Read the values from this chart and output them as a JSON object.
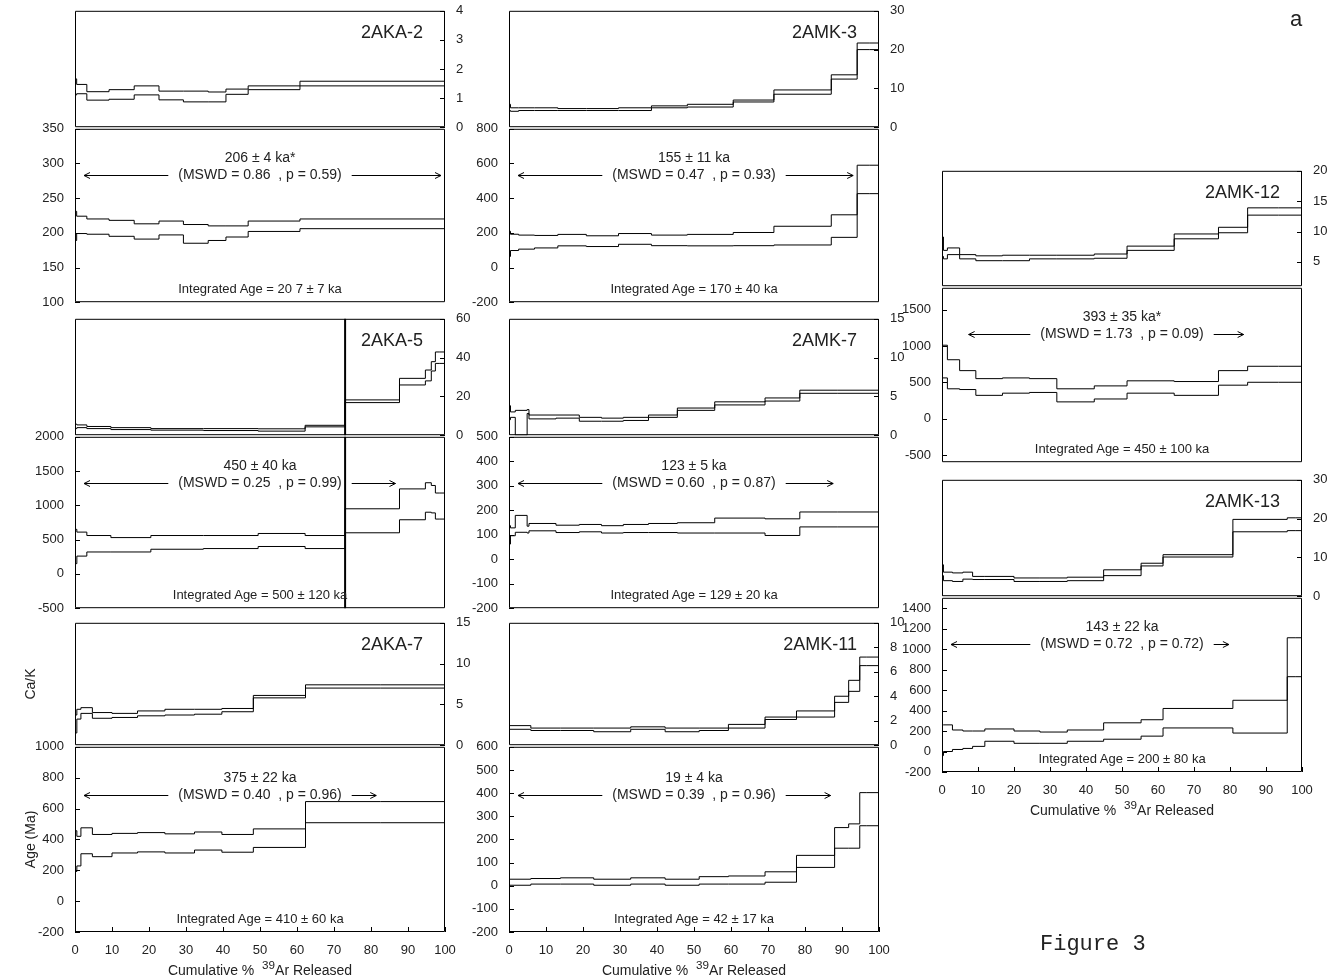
{
  "chart_data": [
    {
      "type": "step",
      "title": "2AKA-2",
      "x": [
        0,
        0.45,
        3.2,
        9.2,
        16,
        22.7,
        29.3,
        36,
        40.8,
        46.8,
        60.8,
        80,
        100
      ],
      "xlim": [
        0,
        100
      ],
      "ylim": [
        0,
        4
      ],
      "yticks": [
        0,
        1,
        2,
        3,
        4
      ],
      "tick_labels": "y",
      "series": [
        {
          "color": "#000000",
          "values": [
            2.65,
            1.66,
            1.47,
            1.22,
            1.29,
            1.42,
            1.24,
            1.24,
            1.21,
            1.31,
            1.42,
            1.58,
            1.58
          ]
        },
        {
          "color": "#000000",
          "values": [
            0.17,
            1.11,
            1.15,
            0.93,
            0.96,
            1.11,
            0.94,
            0.87,
            0.87,
            1.13,
            1.29,
            1.42,
            1.42
          ]
        }
      ]
    },
    {
      "type": "step",
      "x": [
        0,
        0.45,
        3.2,
        9.2,
        16,
        22.7,
        29.3,
        36,
        40.8,
        46.8,
        60.8,
        80,
        100
      ],
      "xlim": [
        0,
        100
      ],
      "ylim": [
        100,
        350
      ],
      "yticks": [
        100,
        150,
        200,
        250,
        300,
        350
      ],
      "tick_labels": "y",
      "series": [
        {
          "color": "#000000",
          "values": [
            324,
            231,
            224,
            220,
            218,
            213,
            217,
            212,
            210,
            210,
            217,
            220,
            220
          ]
        },
        {
          "color": "#000000",
          "values": [
            170,
            189,
            199,
            198,
            195,
            191,
            197,
            185,
            189,
            194,
            202,
            206,
            206
          ]
        }
      ],
      "annotations": [
        "206 ± 4 ka*",
        "(MSWD = 0.86  , p = 0.59)",
        "Integrated Age = 20 7 ± 7 ka"
      ]
    },
    {
      "type": "step",
      "title": "2AKA-5",
      "x": [
        0,
        0.5,
        3.2,
        9.7,
        20.5,
        34.7,
        49.5,
        62.2,
        73,
        87.7,
        94.7,
        96.3,
        97.4,
        98.6,
        100
      ],
      "xlim": [
        0,
        100
      ],
      "ylim": [
        0,
        60
      ],
      "yticks": [
        0,
        20,
        40,
        60
      ],
      "tick_labels": "y",
      "series": [
        {
          "color": "#000000",
          "values": [
            6.2,
            5.7,
            5.3,
            4.5,
            3.9,
            3.4,
            3.4,
            3.3,
            5.1,
            18.2,
            29.3,
            33.6,
            37.9,
            42.9,
            42.9
          ]
        },
        {
          "color": "#000000",
          "values": [
            0,
            3.4,
            3.9,
            3.4,
            2.9,
            2.6,
            2.4,
            2.1,
            4.3,
            16.8,
            25.9,
            28,
            33.1,
            37,
            37
          ]
        }
      ],
      "ref_lines": [
        {
          "axis": "x",
          "value": 73
        }
      ]
    },
    {
      "type": "step",
      "x": [
        0,
        0.5,
        3.2,
        9.7,
        20.5,
        34.7,
        49.5,
        62.2,
        73,
        87.7,
        94.7,
        96.3,
        97.4,
        98.6,
        100
      ],
      "xlim": [
        0,
        100
      ],
      "ylim": [
        -500,
        2000
      ],
      "yticks": [
        -500,
        0,
        500,
        1000,
        1500,
        2000
      ],
      "tick_labels": "y",
      "series": [
        {
          "color": "#000000",
          "values": [
            700,
            650,
            610,
            560,
            530,
            560,
            560,
            590,
            560,
            950,
            1240,
            1330,
            1290,
            1180,
            1180
          ]
        },
        {
          "color": "#000000",
          "values": [
            -200,
            150,
            260,
            320,
            320,
            360,
            370,
            400,
            370,
            600,
            790,
            900,
            890,
            800,
            800
          ]
        }
      ],
      "ref_lines": [
        {
          "axis": "x",
          "value": 73
        }
      ],
      "annotations": [
        "450 ± 40 ka",
        "(MSWD = 0.25  , p = 0.99)",
        "Integrated Age = 500 ± 120 ka"
      ]
    },
    {
      "type": "step",
      "title": "2AKA-7",
      "ylabel": "Ca/K",
      "x": [
        0,
        0.5,
        1.6,
        4.7,
        10,
        16.9,
        24.3,
        32.3,
        39.7,
        48.2,
        62.3,
        82.5,
        100
      ],
      "xlim": [
        0,
        100
      ],
      "ylim": [
        0,
        15
      ],
      "yticks": [
        0,
        5,
        10,
        15
      ],
      "tick_labels": "y",
      "series": [
        {
          "color": "#000000",
          "values": [
            4.6,
            3.7,
            4.4,
            4.6,
            4.0,
            3.9,
            4.2,
            4.4,
            4.4,
            4.5,
            6.1,
            7.4,
            7.4
          ]
        },
        {
          "color": "#000000",
          "values": [
            0.2,
            1.5,
            3.2,
            3.9,
            3.3,
            3.4,
            3.6,
            3.7,
            3.8,
            4.1,
            5.8,
            7.0,
            7.0
          ]
        }
      ]
    },
    {
      "type": "step",
      "ylabel": "Age (Ma)",
      "xlabel": "Cumulative %  $^{39}$Ar Released",
      "x": [
        0,
        0.5,
        1.6,
        4.7,
        10,
        16.9,
        24.3,
        32.3,
        39.7,
        48.2,
        62.3,
        82.5,
        100
      ],
      "xlim": [
        0,
        100
      ],
      "xticks": [
        0,
        10,
        20,
        30,
        40,
        50,
        60,
        70,
        80,
        90,
        100
      ],
      "ylim": [
        -200,
        1000
      ],
      "yticks": [
        -200,
        0,
        200,
        400,
        600,
        800,
        1000
      ],
      "series": [
        {
          "color": "#000000",
          "values": [
            560,
            456,
            420,
            475,
            432,
            439,
            444,
            436,
            448,
            432,
            468,
            645,
            645
          ]
        },
        {
          "color": "#000000",
          "values": [
            0,
            192,
            228,
            307,
            288,
            312,
            319,
            312,
            331,
            317,
            348,
            508,
            508
          ]
        }
      ],
      "annotations": [
        "375 ± 22 ka",
        "(MSWD = 0.40  , p = 0.96)",
        "Integrated Age = 410 ± 60 ka"
      ]
    },
    {
      "type": "step",
      "title": "2AMK-3",
      "x": [
        0,
        0.4,
        2.6,
        6.9,
        13.2,
        20.9,
        29.6,
        38.5,
        48.2,
        60.6,
        71.6,
        87.1,
        94.1,
        97.5,
        100
      ],
      "xlim": [
        0,
        100
      ],
      "ylim": [
        0,
        30
      ],
      "yticks": [
        0,
        10,
        20,
        30
      ],
      "tick_labels": "y",
      "series": [
        {
          "color": "#000000",
          "values": [
            6.1,
            5.9,
            5.0,
            5.0,
            5.0,
            4.8,
            4.8,
            5.0,
            5.5,
            5.9,
            7.0,
            9.6,
            13.5,
            21.7,
            21.7
          ]
        },
        {
          "color": "#000000",
          "values": [
            0,
            4.3,
            4.1,
            4.3,
            4.3,
            4.3,
            4.3,
            4.3,
            5.0,
            5.2,
            6.5,
            8.5,
            12.4,
            20,
            20
          ]
        }
      ]
    },
    {
      "type": "step",
      "x": [
        0,
        0.4,
        2.6,
        6.9,
        13.2,
        20.9,
        29.6,
        38.5,
        48.2,
        60.6,
        71.6,
        87.1,
        94.1,
        97.5,
        100
      ],
      "xlim": [
        0,
        100
      ],
      "ylim": [
        -200,
        800
      ],
      "yticks": [
        -200,
        0,
        200,
        400,
        600,
        800
      ],
      "tick_labels": "y",
      "series": [
        {
          "color": "#000000",
          "values": [
            262,
            209,
            192,
            187,
            185,
            191,
            183,
            196,
            187,
            191,
            202,
            238,
            304,
            590,
            590
          ]
        },
        {
          "color": "#000000",
          "values": [
            -115,
            64,
            98,
            106,
            113,
            125,
            121,
            134,
            126,
            125,
            126,
            130,
            174,
            426,
            426
          ]
        }
      ],
      "annotations": [
        "155 ± 11 ka",
        "(MSWD = 0.47  , p = 0.93)",
        "Integrated Age = 170 ± 40 ka"
      ]
    },
    {
      "type": "step",
      "title": "2AMK-7",
      "x": [
        0,
        0.4,
        1.7,
        4.9,
        5.4,
        12.7,
        19,
        25,
        30.9,
        37.7,
        45.5,
        55.6,
        69.2,
        78.6,
        88.7,
        100
      ],
      "xlim": [
        0,
        100
      ],
      "ylim": [
        0,
        15
      ],
      "yticks": [
        0,
        5,
        10,
        15
      ],
      "tick_labels": "y",
      "series": [
        {
          "color": "#000000",
          "values": [
            3.9,
            3.8,
            3.0,
            3.2,
            3.3,
            2.6,
            2.6,
            2.3,
            2.2,
            2.3,
            2.6,
            3.5,
            4.3,
            4.8,
            5.8,
            5.8
          ]
        },
        {
          "color": "#000000",
          "values": [
            0,
            2.0,
            2.3,
            0,
            2.8,
            2.1,
            2.2,
            1.8,
            1.8,
            1.9,
            2.3,
            3.2,
            3.9,
            4.4,
            5.4,
            5.4
          ]
        }
      ]
    },
    {
      "type": "step",
      "x": [
        0,
        0.4,
        1.7,
        4.9,
        5.4,
        12.7,
        19,
        25,
        30.9,
        37.7,
        45.5,
        55.6,
        69.2,
        78.6,
        88.7,
        100
      ],
      "xlim": [
        0,
        100
      ],
      "ylim": [
        -200,
        500
      ],
      "yticks": [
        -200,
        -100,
        0,
        100,
        200,
        300,
        400,
        500
      ],
      "tick_labels": "y",
      "series": [
        {
          "color": "#000000",
          "values": [
            186,
            137,
            128,
            179,
            135,
            146,
            139,
            142,
            137,
            142,
            146,
            149,
            168,
            165,
            193,
            193
          ]
        },
        {
          "color": "#000000",
          "values": [
            16,
            62,
            96,
            110,
            107,
            116,
            109,
            112,
            107,
            109,
            109,
            107,
            107,
            97,
            132,
            132
          ]
        }
      ],
      "annotations": [
        "123 ± 5 ka",
        "(MSWD = 0.60  , p = 0.87)",
        "Integrated Age = 129 ± 20 ka"
      ]
    },
    {
      "type": "step",
      "title": "2AMK-11",
      "x": [
        0,
        5.9,
        13.9,
        22.9,
        32.9,
        42.2,
        51.4,
        59.3,
        69.2,
        77.7,
        88,
        91.8,
        94.8,
        96.7,
        100
      ],
      "xlim": [
        0,
        100
      ],
      "ylim": [
        0,
        10
      ],
      "yticks": [
        0,
        2,
        4,
        6,
        8,
        10
      ],
      "tick_labels": "y",
      "series": [
        {
          "color": "#000000",
          "values": [
            2.0,
            1.6,
            1.4,
            1.4,
            1.4,
            1.5,
            1.4,
            1.4,
            1.7,
            2.3,
            2.8,
            4.0,
            5.3,
            7.2,
            7.2
          ]
        },
        {
          "color": "#000000",
          "values": [
            1.7,
            1.3,
            1.2,
            1.2,
            1.1,
            1.3,
            1.1,
            1.2,
            1.4,
            2.1,
            2.3,
            3.5,
            4.4,
            6.5,
            6.5
          ]
        }
      ]
    },
    {
      "type": "step",
      "xlabel": "Cumulative %  $^{39}$Ar Released",
      "x": [
        0,
        5.9,
        13.9,
        22.9,
        32.9,
        42.2,
        51.4,
        59.3,
        69.2,
        77.7,
        88,
        91.8,
        94.8,
        96.7,
        100
      ],
      "xlim": [
        0,
        100
      ],
      "xticks": [
        0,
        10,
        20,
        30,
        40,
        50,
        60,
        70,
        80,
        90,
        100
      ],
      "ylim": [
        -200,
        600
      ],
      "yticks": [
        -200,
        -100,
        0,
        100,
        200,
        300,
        400,
        500,
        600
      ],
      "series": [
        {
          "color": "#000000",
          "values": [
            39,
            28,
            31,
            34,
            28,
            34,
            28,
            39,
            42,
            60,
            131,
            251,
            267,
            402,
            402
          ]
        },
        {
          "color": "#000000",
          "values": [
            7,
            2,
            7,
            7,
            2,
            7,
            2,
            7,
            7,
            15,
            79,
            162,
            162,
            259,
            259
          ]
        }
      ],
      "annotations": [
        "19 ± 4 ka",
        "(MSWD = 0.39  , p = 0.96)",
        "Integrated Age = 42 ± 17 ka"
      ]
    },
    {
      "type": "step",
      "title": "2AMK-12",
      "x": [
        0,
        0.4,
        1.5,
        4.9,
        9.4,
        16.8,
        24.3,
        31.9,
        42.3,
        51.4,
        64.5,
        76.8,
        84.9,
        93.5,
        100
      ],
      "xlim": [
        0,
        100
      ],
      "ylim": [
        1,
        20
      ],
      "yticks": [
        5,
        10,
        15,
        20
      ],
      "tick_labels": "y",
      "series": [
        {
          "color": "#000000",
          "values": [
            12.3,
            9.1,
            6.9,
            7.3,
            6.2,
            6.0,
            6.1,
            6.1,
            6.1,
            6.3,
            7.6,
            9.6,
            10.7,
            13.9,
            13.9
          ]
        },
        {
          "color": "#000000",
          "values": [
            1.3,
            5.9,
            5.5,
            6.2,
            5.5,
            5.2,
            5.2,
            5.5,
            5.5,
            5.6,
            6.9,
            8.8,
            9.8,
            12.7,
            12.7
          ]
        }
      ]
    },
    {
      "type": "step",
      "x": [
        0,
        1.5,
        4.9,
        9.4,
        16.8,
        24.3,
        31.9,
        42.3,
        51.4,
        64.5,
        76.8,
        84.9,
        93.5,
        100
      ],
      "xlim": [
        0,
        100
      ],
      "ylim": [
        -600,
        1800
      ],
      "yticks": [
        -500,
        0,
        500,
        1000,
        1500
      ],
      "tick_labels": "y",
      "series": [
        {
          "color": "#000000",
          "values": [
            830,
            1010,
            810,
            660,
            550,
            560,
            550,
            410,
            450,
            520,
            510,
            660,
            720,
            720
          ]
        },
        {
          "color": "#000000",
          "values": [
            100,
            560,
            410,
            400,
            320,
            350,
            360,
            230,
            270,
            350,
            320,
            460,
            500,
            500
          ]
        }
      ],
      "annotations": [
        "393 ± 35 ka*",
        "(MSWD = 1.73  , p = 0.09)",
        "Integrated Age = 450 ± 100 ka"
      ]
    },
    {
      "type": "step",
      "title": "2AMK-13",
      "x": [
        0,
        0.4,
        2.9,
        5.8,
        8.5,
        11.9,
        20,
        27.2,
        34.8,
        44.9,
        55.3,
        61.4,
        80.8,
        95.9,
        98.1,
        100
      ],
      "xlim": [
        0,
        100
      ],
      "ylim": [
        0,
        30
      ],
      "yticks": [
        0,
        10,
        20,
        30
      ],
      "tick_labels": "y",
      "series": [
        {
          "color": "#000000",
          "values": [
            8.1,
            8.1,
            6.2,
            6.0,
            6.2,
            5.1,
            5.1,
            4.7,
            4.7,
            4.9,
            6.8,
            8.5,
            10.7,
            19.8,
            20.2,
            20.2
          ]
        },
        {
          "color": "#000000",
          "values": [
            0,
            5.3,
            4.0,
            3.8,
            4.4,
            4.3,
            4.3,
            3.8,
            3.8,
            4.0,
            5.3,
            7.8,
            10.1,
            16.6,
            16.9,
            16.9
          ]
        }
      ]
    },
    {
      "type": "step",
      "xlabel": "Cumulative %  $^{39}$Ar Released",
      "x": [
        0,
        0.4,
        2.9,
        5.8,
        8.5,
        11.9,
        20,
        27.2,
        34.8,
        44.9,
        55.3,
        61.4,
        80.8,
        95.9,
        98.1,
        100
      ],
      "xlim": [
        0,
        100
      ],
      "xticks": [
        0,
        10,
        20,
        30,
        40,
        50,
        60,
        70,
        80,
        90,
        100
      ],
      "ylim": [
        -200,
        1500
      ],
      "yticks": [
        -200,
        0,
        200,
        400,
        600,
        800,
        1000,
        1200,
        1400
      ],
      "series": [
        {
          "color": "#000000",
          "values": [
            380,
            260,
            260,
            210,
            200,
            200,
            220,
            200,
            190,
            210,
            280,
            310,
            420,
            500,
            1110,
            1110
          ]
        },
        {
          "color": "#000000",
          "values": [
            -200,
            -40,
            0,
            20,
            30,
            50,
            100,
            80,
            80,
            100,
            120,
            150,
            230,
            180,
            730,
            730
          ]
        }
      ],
      "annotations": [
        "143 ± 22 ka",
        "(MSWD = 0.72  , p = 0.72)",
        "Integrated Age = 200 ± 80 ka"
      ]
    },
    {
      "type": "other",
      "annotations": [
        "a",
        "Figure 3"
      ]
    }
  ]
}
